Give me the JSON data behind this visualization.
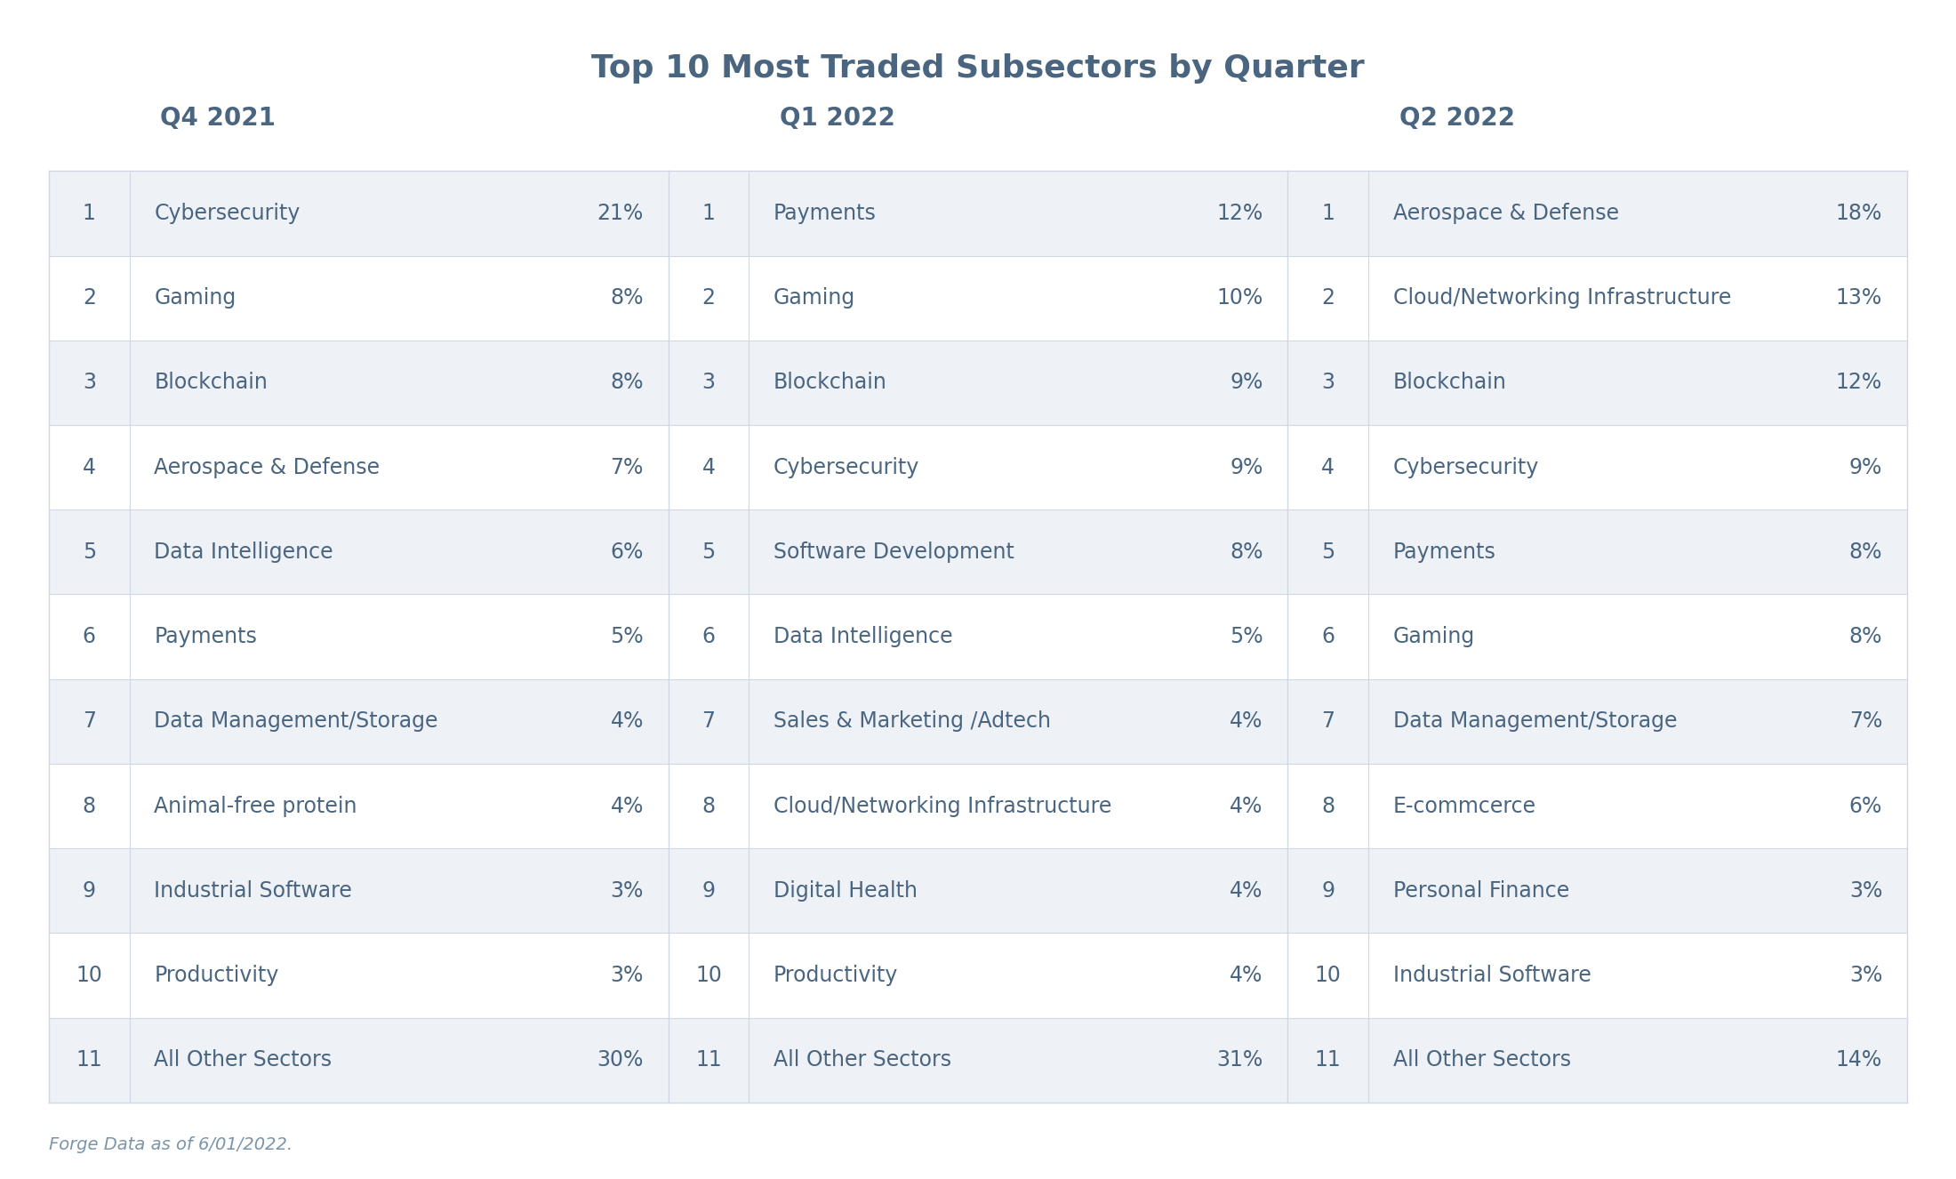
{
  "title": "Top 10 Most Traded Subsectors by Quarter",
  "title_color": "#4a6580",
  "title_fontsize": 26,
  "footnote": "Forge Data as of 6/01/2022.",
  "footnote_color": "#7a95aa",
  "footnote_fontsize": 14,
  "background_color": "#ffffff",
  "row_white_color": "#ffffff",
  "row_alt_color": "#eef1f6",
  "row_border_color": "#d0d8e4",
  "header_color": "#4a6580",
  "text_color": "#4a6580",
  "header_fontsize": 20,
  "cell_fontsize": 17,
  "columns": [
    {
      "quarter": "Q4 2021",
      "rows": [
        {
          "rank": "1",
          "name": "Cybersecurity",
          "pct": "21%"
        },
        {
          "rank": "2",
          "name": "Gaming",
          "pct": "8%"
        },
        {
          "rank": "3",
          "name": "Blockchain",
          "pct": "8%"
        },
        {
          "rank": "4",
          "name": "Aerospace & Defense",
          "pct": "7%"
        },
        {
          "rank": "5",
          "name": "Data Intelligence",
          "pct": "6%"
        },
        {
          "rank": "6",
          "name": "Payments",
          "pct": "5%"
        },
        {
          "rank": "7",
          "name": "Data Management/Storage",
          "pct": "4%"
        },
        {
          "rank": "8",
          "name": "Animal-free protein",
          "pct": "4%"
        },
        {
          "rank": "9",
          "name": "Industrial Software",
          "pct": "3%"
        },
        {
          "rank": "10",
          "name": "Productivity",
          "pct": "3%"
        },
        {
          "rank": "11",
          "name": "All Other Sectors",
          "pct": "30%"
        }
      ]
    },
    {
      "quarter": "Q1 2022",
      "rows": [
        {
          "rank": "1",
          "name": "Payments",
          "pct": "12%"
        },
        {
          "rank": "2",
          "name": "Gaming",
          "pct": "10%"
        },
        {
          "rank": "3",
          "name": "Blockchain",
          "pct": "9%"
        },
        {
          "rank": "4",
          "name": "Cybersecurity",
          "pct": "9%"
        },
        {
          "rank": "5",
          "name": "Software Development",
          "pct": "8%"
        },
        {
          "rank": "6",
          "name": "Data Intelligence",
          "pct": "5%"
        },
        {
          "rank": "7",
          "name": "Sales & Marketing /Adtech",
          "pct": "4%"
        },
        {
          "rank": "8",
          "name": "Cloud/Networking Infrastructure",
          "pct": "4%"
        },
        {
          "rank": "9",
          "name": "Digital Health",
          "pct": "4%"
        },
        {
          "rank": "10",
          "name": "Productivity",
          "pct": "4%"
        },
        {
          "rank": "11",
          "name": "All Other Sectors",
          "pct": "31%"
        }
      ]
    },
    {
      "quarter": "Q2 2022",
      "rows": [
        {
          "rank": "1",
          "name": "Aerospace & Defense",
          "pct": "18%"
        },
        {
          "rank": "2",
          "name": "Cloud/Networking Infrastructure",
          "pct": "13%"
        },
        {
          "rank": "3",
          "name": "Blockchain",
          "pct": "12%"
        },
        {
          "rank": "4",
          "name": "Cybersecurity",
          "pct": "9%"
        },
        {
          "rank": "5",
          "name": "Payments",
          "pct": "8%"
        },
        {
          "rank": "6",
          "name": "Gaming",
          "pct": "8%"
        },
        {
          "rank": "7",
          "name": "Data Management/Storage",
          "pct": "7%"
        },
        {
          "rank": "8",
          "name": "E-commcerce",
          "pct": "6%"
        },
        {
          "rank": "9",
          "name": "Personal Finance",
          "pct": "3%"
        },
        {
          "rank": "10",
          "name": "Industrial Software",
          "pct": "3%"
        },
        {
          "rank": "11",
          "name": "All Other Sectors",
          "pct": "14%"
        }
      ]
    }
  ]
}
